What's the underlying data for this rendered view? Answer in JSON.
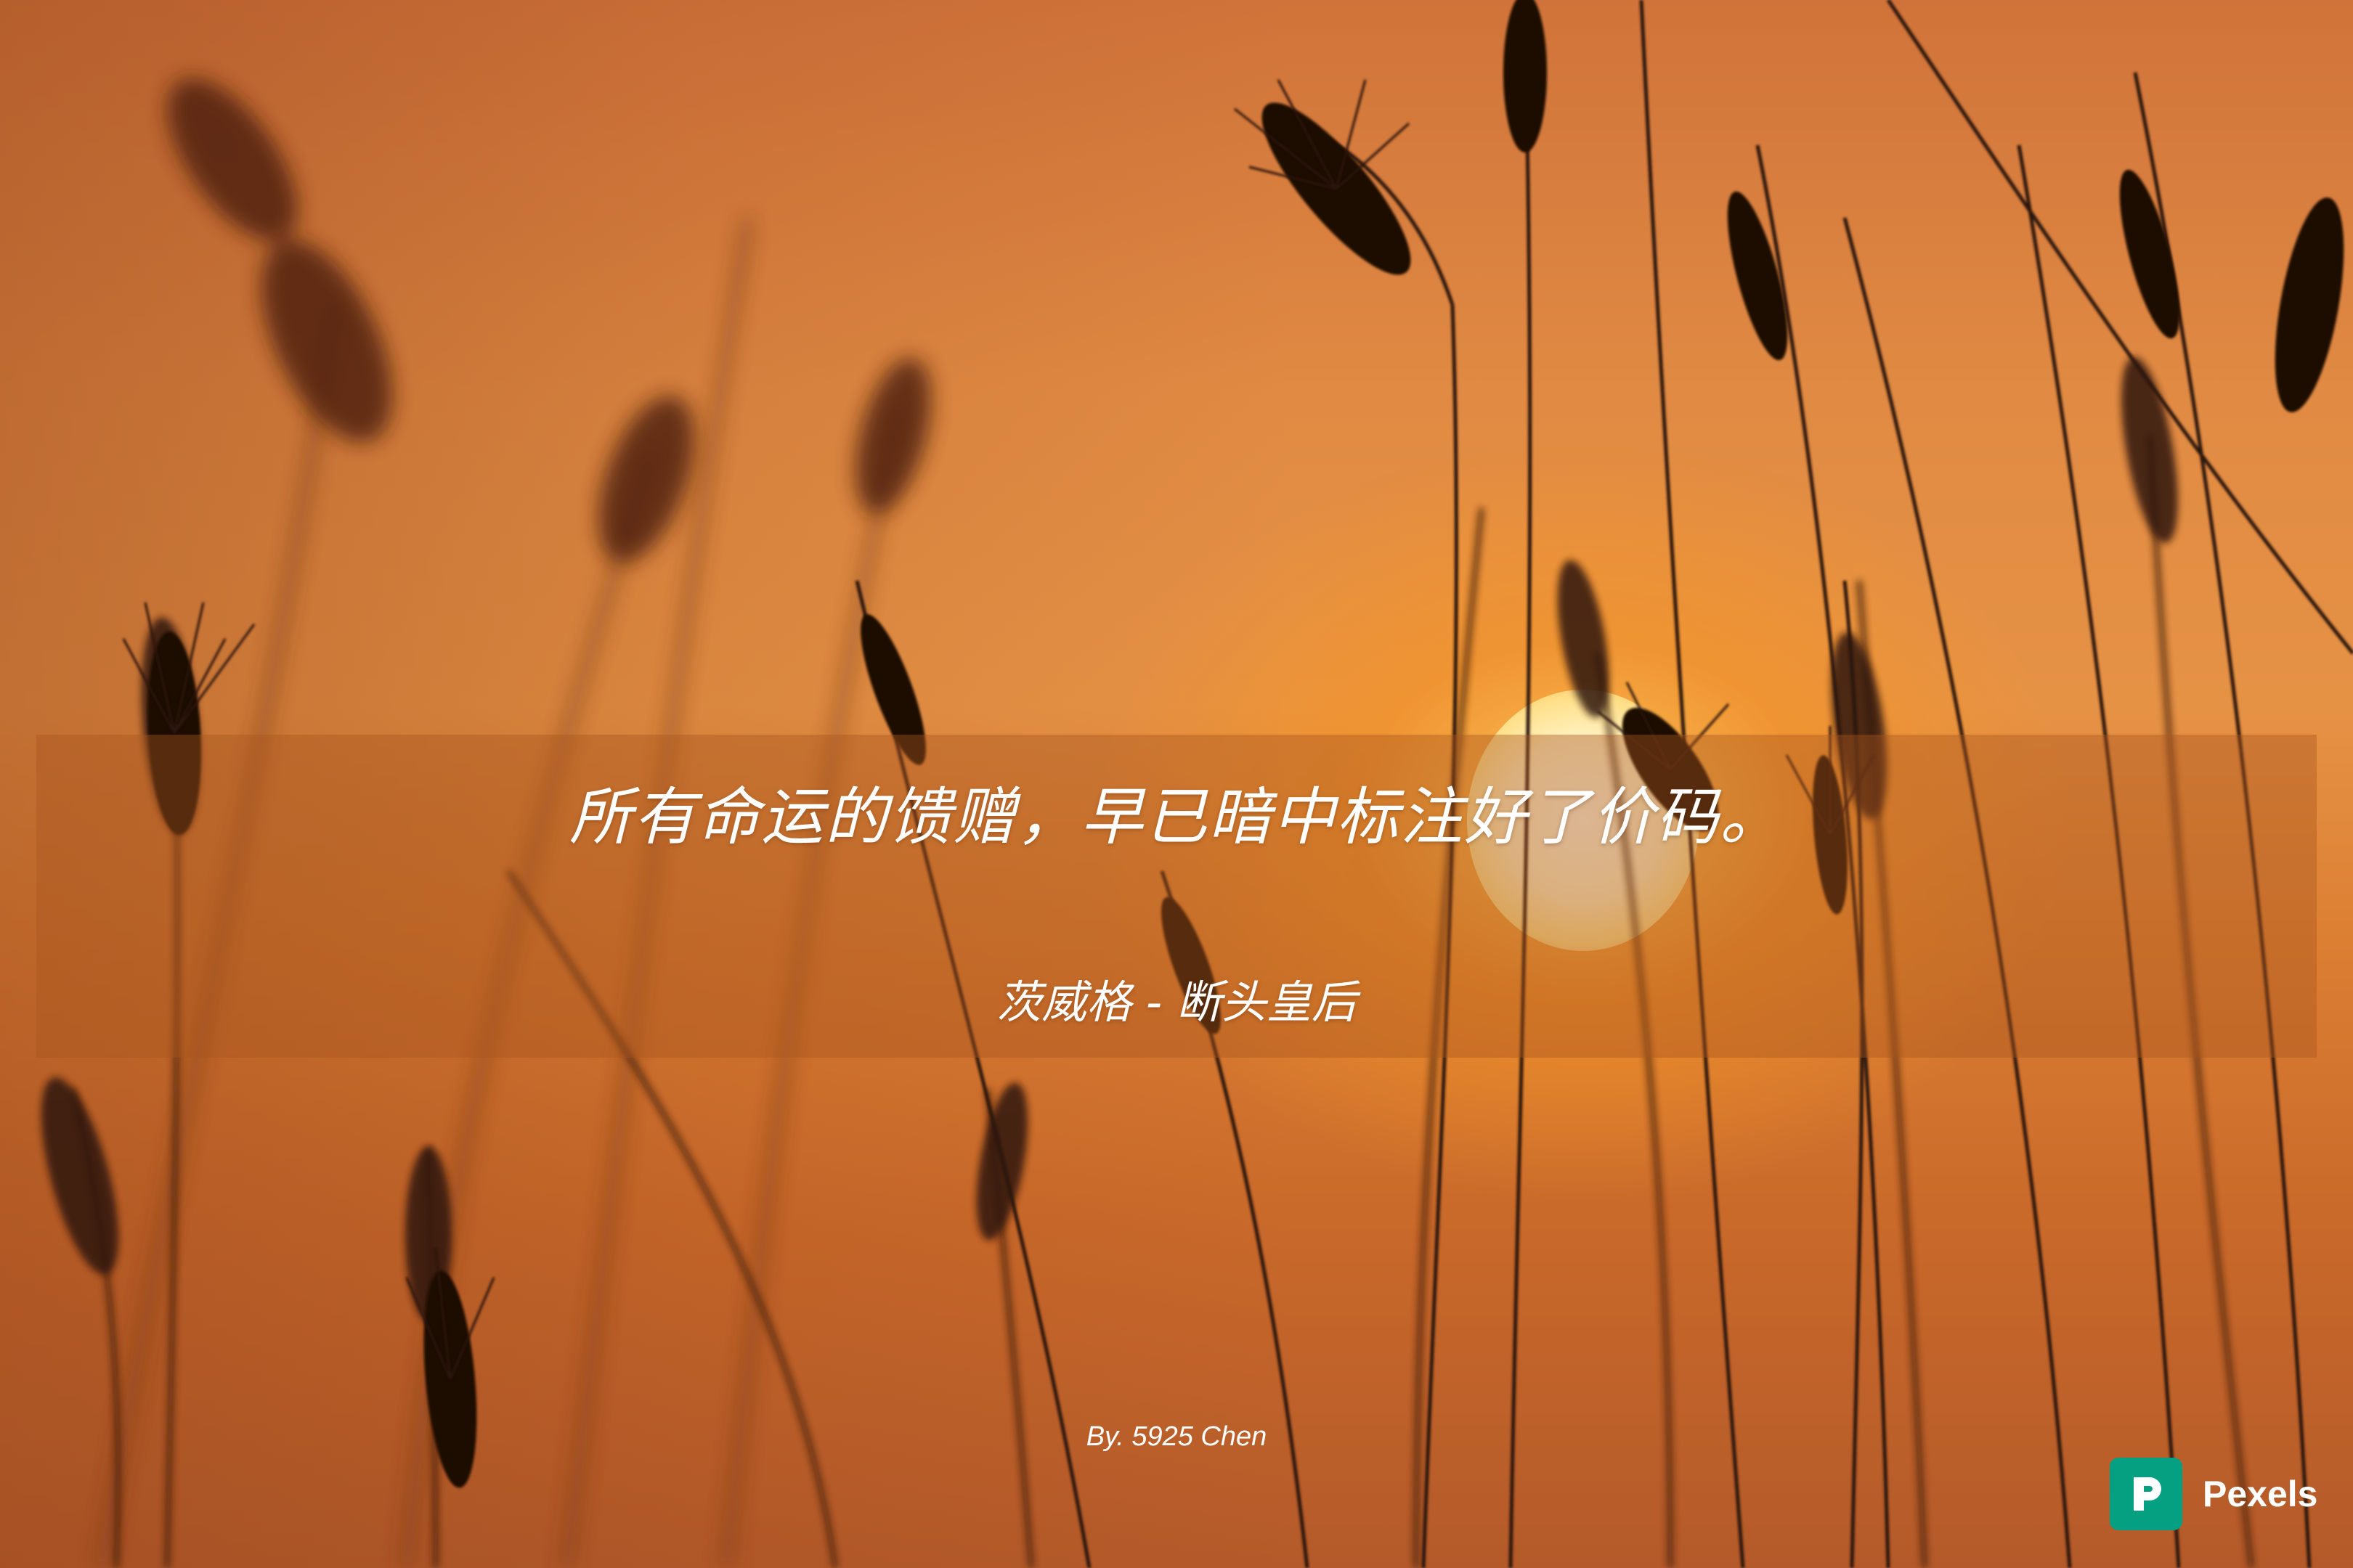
{
  "quote": "所有命运的馈赠，早已暗中标注好了价码。",
  "author": "茨威格 - 断头皇后",
  "byline": "By. 5925 Chen",
  "watermark": {
    "brand": "Pexels",
    "icon": "pexels-logo-icon",
    "color": "#05a081"
  },
  "colors": {
    "sky": "#e08a43",
    "sun": "#fff2c4",
    "grass": "#3a1a0c"
  }
}
